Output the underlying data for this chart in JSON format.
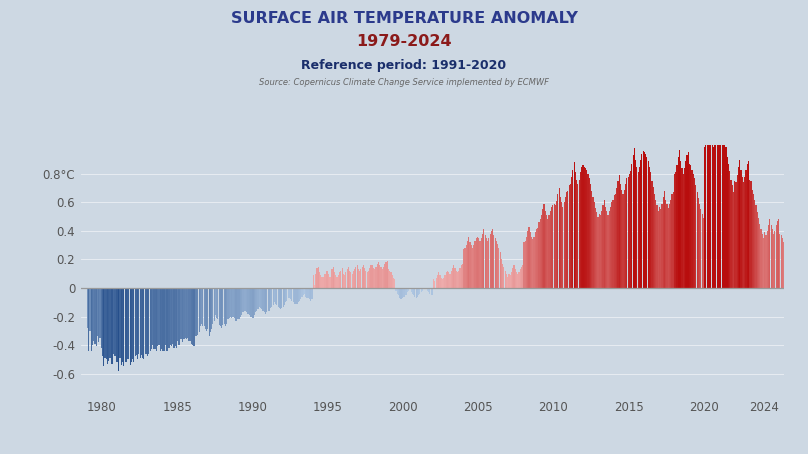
{
  "title_line1": "SURFACE AIR TEMPERATURE ANOMALY",
  "title_line2": "1979-2024",
  "subtitle": "Reference period: 1991-2020",
  "source": "Source: Copernicus Climate Change Service implemented by ECMWF",
  "yticks": [
    0.8,
    0.6,
    0.4,
    0.2,
    0,
    -0.2,
    -0.4,
    -0.6
  ],
  "xticks": [
    1980,
    1985,
    1990,
    1995,
    2000,
    2005,
    2010,
    2015,
    2020,
    2024
  ],
  "ylim": [
    -0.75,
    1.0
  ],
  "xlim": [
    1978.6,
    2025.3
  ],
  "background_color": "#cdd8e3",
  "title_color1": "#2b3a8c",
  "title_color2": "#8b1a1a",
  "subtitle_color": "#1a2e6b",
  "source_color": "#666666",
  "zero_line_color": "#999999",
  "values": [
    -0.28,
    -0.44,
    -0.3,
    -0.44,
    -0.4,
    -0.37,
    -0.39,
    -0.41,
    -0.34,
    -0.38,
    -0.35,
    -0.42,
    -0.48,
    -0.55,
    -0.49,
    -0.5,
    -0.53,
    -0.51,
    -0.49,
    -0.53,
    -0.53,
    -0.46,
    -0.48,
    -0.52,
    -0.52,
    -0.58,
    -0.49,
    -0.54,
    -0.52,
    -0.55,
    -0.52,
    -0.52,
    -0.5,
    -0.5,
    -0.54,
    -0.52,
    -0.5,
    -0.52,
    -0.48,
    -0.47,
    -0.5,
    -0.46,
    -0.49,
    -0.47,
    -0.49,
    -0.5,
    -0.46,
    -0.46,
    -0.48,
    -0.46,
    -0.44,
    -0.43,
    -0.4,
    -0.43,
    -0.43,
    -0.44,
    -0.41,
    -0.4,
    -0.44,
    -0.43,
    -0.44,
    -0.44,
    -0.4,
    -0.44,
    -0.44,
    -0.42,
    -0.4,
    -0.41,
    -0.39,
    -0.42,
    -0.41,
    -0.42,
    -0.37,
    -0.4,
    -0.36,
    -0.36,
    -0.38,
    -0.36,
    -0.35,
    -0.36,
    -0.35,
    -0.37,
    -0.37,
    -0.39,
    -0.4,
    -0.41,
    -0.34,
    -0.34,
    -0.33,
    -0.31,
    -0.27,
    -0.25,
    -0.27,
    -0.27,
    -0.29,
    -0.3,
    -0.29,
    -0.34,
    -0.31,
    -0.29,
    -0.25,
    -0.23,
    -0.19,
    -0.21,
    -0.22,
    -0.26,
    -0.27,
    -0.28,
    -0.26,
    -0.25,
    -0.27,
    -0.25,
    -0.22,
    -0.21,
    -0.2,
    -0.21,
    -0.2,
    -0.21,
    -0.23,
    -0.23,
    -0.22,
    -0.22,
    -0.2,
    -0.19,
    -0.17,
    -0.16,
    -0.16,
    -0.17,
    -0.18,
    -0.19,
    -0.2,
    -0.2,
    -0.21,
    -0.19,
    -0.17,
    -0.16,
    -0.15,
    -0.13,
    -0.14,
    -0.15,
    -0.16,
    -0.17,
    -0.18,
    -0.17,
    -0.16,
    -0.16,
    -0.14,
    -0.13,
    -0.12,
    -0.1,
    -0.11,
    -0.12,
    -0.13,
    -0.14,
    -0.15,
    -0.14,
    -0.13,
    -0.12,
    -0.1,
    -0.09,
    -0.07,
    -0.07,
    -0.08,
    -0.09,
    -0.1,
    -0.11,
    -0.11,
    -0.11,
    -0.1,
    -0.09,
    -0.08,
    -0.06,
    -0.05,
    -0.04,
    -0.06,
    -0.07,
    -0.07,
    -0.08,
    -0.09,
    -0.08,
    0.09,
    0.02,
    0.1,
    0.14,
    0.15,
    0.11,
    0.09,
    0.08,
    0.08,
    0.1,
    0.1,
    0.12,
    0.1,
    0.08,
    0.08,
    0.13,
    0.15,
    0.11,
    0.09,
    0.08,
    0.09,
    0.11,
    0.12,
    0.14,
    0.1,
    0.09,
    0.11,
    0.13,
    0.15,
    0.12,
    0.11,
    0.1,
    0.12,
    0.13,
    0.15,
    0.16,
    0.13,
    0.12,
    0.13,
    0.15,
    0.16,
    0.14,
    0.12,
    0.11,
    0.12,
    0.14,
    0.16,
    0.16,
    0.14,
    0.13,
    0.15,
    0.17,
    0.18,
    0.16,
    0.15,
    0.13,
    0.15,
    0.17,
    0.18,
    0.19,
    0.13,
    0.12,
    0.11,
    0.09,
    0.07,
    0.06,
    -0.02,
    -0.04,
    -0.05,
    -0.07,
    -0.08,
    -0.07,
    -0.06,
    -0.06,
    -0.05,
    -0.03,
    -0.02,
    -0.01,
    -0.03,
    -0.04,
    -0.05,
    -0.06,
    -0.07,
    -0.06,
    -0.05,
    -0.04,
    -0.03,
    -0.02,
    -0.01,
    0.0,
    -0.01,
    -0.02,
    -0.03,
    -0.04,
    -0.05,
    -0.05,
    0.06,
    0.05,
    0.07,
    0.09,
    0.11,
    0.09,
    0.07,
    0.06,
    0.07,
    0.09,
    0.11,
    0.12,
    0.11,
    0.1,
    0.12,
    0.14,
    0.16,
    0.14,
    0.12,
    0.11,
    0.12,
    0.14,
    0.16,
    0.17,
    0.27,
    0.28,
    0.3,
    0.33,
    0.36,
    0.32,
    0.3,
    0.28,
    0.3,
    0.33,
    0.35,
    0.36,
    0.35,
    0.33,
    0.35,
    0.38,
    0.41,
    0.37,
    0.35,
    0.33,
    0.35,
    0.38,
    0.4,
    0.41,
    0.37,
    0.35,
    0.33,
    0.31,
    0.28,
    0.25,
    0.2,
    0.17,
    0.15,
    0.12,
    0.1,
    0.08,
    0.1,
    0.09,
    0.11,
    0.14,
    0.16,
    0.13,
    0.11,
    0.1,
    0.11,
    0.13,
    0.15,
    0.16,
    0.32,
    0.33,
    0.36,
    0.4,
    0.43,
    0.39,
    0.36,
    0.34,
    0.36,
    0.39,
    0.41,
    0.42,
    0.46,
    0.48,
    0.51,
    0.55,
    0.59,
    0.54,
    0.51,
    0.48,
    0.51,
    0.54,
    0.57,
    0.58,
    0.59,
    0.58,
    0.61,
    0.66,
    0.7,
    0.64,
    0.6,
    0.57,
    0.6,
    0.64,
    0.67,
    0.68,
    0.72,
    0.73,
    0.78,
    0.83,
    0.88,
    0.81,
    0.76,
    0.73,
    0.76,
    0.81,
    0.85,
    0.86,
    0.85,
    0.84,
    0.83,
    0.8,
    0.77,
    0.73,
    0.68,
    0.64,
    0.6,
    0.56,
    0.53,
    0.5,
    0.52,
    0.51,
    0.54,
    0.58,
    0.62,
    0.57,
    0.54,
    0.51,
    0.54,
    0.57,
    0.6,
    0.62,
    0.65,
    0.66,
    0.7,
    0.75,
    0.79,
    0.73,
    0.69,
    0.66,
    0.69,
    0.73,
    0.77,
    0.78,
    0.8,
    0.82,
    0.87,
    0.93,
    0.98,
    0.9,
    0.85,
    0.81,
    0.85,
    0.9,
    0.94,
    0.96,
    0.95,
    0.94,
    0.92,
    0.89,
    0.85,
    0.81,
    0.75,
    0.71,
    0.66,
    0.62,
    0.58,
    0.54,
    0.57,
    0.55,
    0.59,
    0.64,
    0.68,
    0.62,
    0.59,
    0.56,
    0.59,
    0.62,
    0.66,
    0.67,
    0.8,
    0.81,
    0.86,
    0.92,
    0.97,
    0.89,
    0.84,
    0.8,
    0.84,
    0.89,
    0.93,
    0.95,
    0.87,
    0.86,
    0.83,
    0.8,
    0.77,
    0.72,
    0.67,
    0.63,
    0.59,
    0.55,
    0.52,
    0.49,
    0.99,
    1.0,
    1.06,
    1.14,
    1.2,
    1.1,
    1.04,
    0.99,
    1.04,
    1.1,
    1.15,
    1.17,
    1.16,
    1.14,
    1.12,
    1.08,
    1.04,
    0.99,
    0.92,
    0.87,
    0.82,
    0.76,
    0.72,
    0.67,
    0.75,
    0.74,
    0.79,
    0.85,
    0.9,
    0.83,
    0.78,
    0.74,
    0.78,
    0.83,
    0.87,
    0.89,
    0.76,
    0.75,
    0.69,
    0.66,
    0.62,
    0.58,
    0.53,
    0.49,
    0.45,
    0.41,
    0.38,
    0.35,
    0.39,
    0.37,
    0.4,
    0.44,
    0.48,
    0.44,
    0.41,
    0.38,
    0.4,
    0.44,
    0.47,
    0.48,
    0.38,
    0.37,
    0.35,
    0.32,
    0.29,
    0.26,
    0.22,
    0.19,
    0.16,
    0.13,
    0.11,
    0.09
  ]
}
